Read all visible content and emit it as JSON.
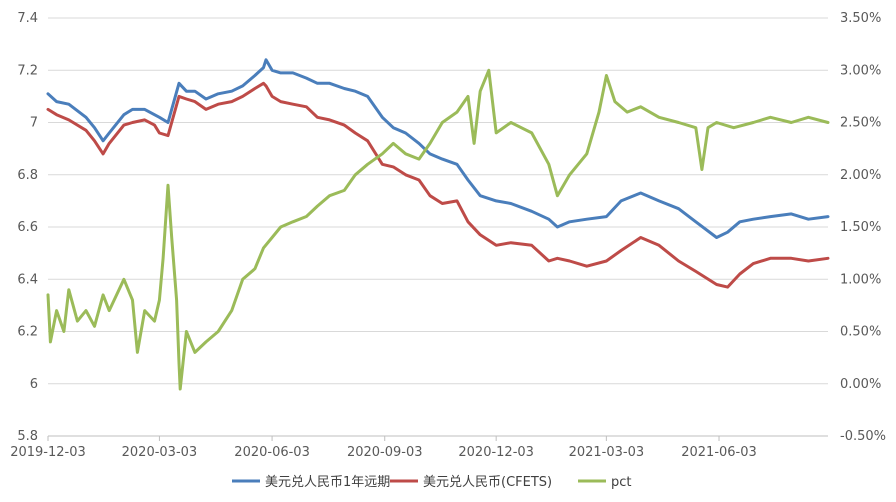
{
  "chart_data": {
    "type": "line",
    "title": "",
    "x_ticks": [
      "2019-12-03",
      "2020-03-03",
      "2020-06-03",
      "2020-09-03",
      "2020-12-03",
      "2021-03-03",
      "2021-06-03"
    ],
    "x_range": [
      "2019-12-03",
      "2021-08-31"
    ],
    "y_left": {
      "min": 5.8,
      "max": 7.4,
      "ticks": [
        5.8,
        6,
        6.2,
        6.4,
        6.6,
        6.8,
        7,
        7.2,
        7.4
      ],
      "tick_labels": [
        "5.8",
        "6",
        "6.2",
        "6.4",
        "6.6",
        "6.8",
        "7",
        "7.2",
        "7.4"
      ]
    },
    "y_right": {
      "min": -0.5,
      "max": 3.5,
      "ticks": [
        -0.5,
        0,
        0.5,
        1,
        1.5,
        2,
        2.5,
        3,
        3.5
      ],
      "tick_labels": [
        "-0.50%",
        "0.00%",
        "0.50%",
        "1.00%",
        "1.50%",
        "2.00%",
        "2.50%",
        "3.00%",
        "3.50%"
      ]
    },
    "grid": "horizontal",
    "legend_position": "bottom",
    "series": [
      {
        "name": "美元兑人民币1年远期",
        "axis": "left",
        "color": "#4a7ebb",
        "points": [
          [
            "2019-12-03",
            7.11
          ],
          [
            "2019-12-10",
            7.08
          ],
          [
            "2019-12-20",
            7.07
          ],
          [
            "2020-01-03",
            7.02
          ],
          [
            "2020-01-10",
            6.98
          ],
          [
            "2020-01-17",
            6.93
          ],
          [
            "2020-01-22",
            6.96
          ],
          [
            "2020-02-03",
            7.03
          ],
          [
            "2020-02-10",
            7.05
          ],
          [
            "2020-02-20",
            7.05
          ],
          [
            "2020-02-28",
            7.03
          ],
          [
            "2020-03-03",
            7.02
          ],
          [
            "2020-03-10",
            7.0
          ],
          [
            "2020-03-19",
            7.15
          ],
          [
            "2020-03-25",
            7.12
          ],
          [
            "2020-04-01",
            7.12
          ],
          [
            "2020-04-10",
            7.09
          ],
          [
            "2020-04-20",
            7.11
          ],
          [
            "2020-05-01",
            7.12
          ],
          [
            "2020-05-10",
            7.14
          ],
          [
            "2020-05-20",
            7.18
          ],
          [
            "2020-05-27",
            7.21
          ],
          [
            "2020-05-29",
            7.24
          ],
          [
            "2020-06-03",
            7.2
          ],
          [
            "2020-06-10",
            7.19
          ],
          [
            "2020-06-20",
            7.19
          ],
          [
            "2020-07-01",
            7.17
          ],
          [
            "2020-07-10",
            7.15
          ],
          [
            "2020-07-20",
            7.15
          ],
          [
            "2020-08-01",
            7.13
          ],
          [
            "2020-08-10",
            7.12
          ],
          [
            "2020-08-20",
            7.1
          ],
          [
            "2020-09-01",
            7.02
          ],
          [
            "2020-09-10",
            6.98
          ],
          [
            "2020-09-20",
            6.96
          ],
          [
            "2020-10-01",
            6.92
          ],
          [
            "2020-10-10",
            6.88
          ],
          [
            "2020-10-20",
            6.86
          ],
          [
            "2020-11-01",
            6.84
          ],
          [
            "2020-11-10",
            6.78
          ],
          [
            "2020-11-20",
            6.72
          ],
          [
            "2020-12-03",
            6.7
          ],
          [
            "2020-12-15",
            6.69
          ],
          [
            "2021-01-01",
            6.66
          ],
          [
            "2021-01-15",
            6.63
          ],
          [
            "2021-01-22",
            6.6
          ],
          [
            "2021-02-01",
            6.62
          ],
          [
            "2021-02-15",
            6.63
          ],
          [
            "2021-03-03",
            6.64
          ],
          [
            "2021-03-15",
            6.7
          ],
          [
            "2021-03-31",
            6.73
          ],
          [
            "2021-04-15",
            6.7
          ],
          [
            "2021-05-01",
            6.67
          ],
          [
            "2021-05-15",
            6.62
          ],
          [
            "2021-06-01",
            6.56
          ],
          [
            "2021-06-10",
            6.58
          ],
          [
            "2021-06-20",
            6.62
          ],
          [
            "2021-07-01",
            6.63
          ],
          [
            "2021-07-15",
            6.64
          ],
          [
            "2021-08-01",
            6.65
          ],
          [
            "2021-08-15",
            6.63
          ],
          [
            "2021-08-31",
            6.64
          ]
        ]
      },
      {
        "name": "美元兑人民币(CFETS)",
        "axis": "left",
        "color": "#be4b48",
        "points": [
          [
            "2019-12-03",
            7.05
          ],
          [
            "2019-12-10",
            7.03
          ],
          [
            "2019-12-20",
            7.01
          ],
          [
            "2020-01-03",
            6.97
          ],
          [
            "2020-01-10",
            6.93
          ],
          [
            "2020-01-17",
            6.88
          ],
          [
            "2020-01-22",
            6.92
          ],
          [
            "2020-02-03",
            6.99
          ],
          [
            "2020-02-10",
            7.0
          ],
          [
            "2020-02-20",
            7.01
          ],
          [
            "2020-02-28",
            6.99
          ],
          [
            "2020-03-03",
            6.96
          ],
          [
            "2020-03-10",
            6.95
          ],
          [
            "2020-03-19",
            7.1
          ],
          [
            "2020-03-25",
            7.09
          ],
          [
            "2020-04-01",
            7.08
          ],
          [
            "2020-04-10",
            7.05
          ],
          [
            "2020-04-20",
            7.07
          ],
          [
            "2020-05-01",
            7.08
          ],
          [
            "2020-05-10",
            7.1
          ],
          [
            "2020-05-20",
            7.13
          ],
          [
            "2020-05-27",
            7.15
          ],
          [
            "2020-05-29",
            7.14
          ],
          [
            "2020-06-03",
            7.1
          ],
          [
            "2020-06-10",
            7.08
          ],
          [
            "2020-06-20",
            7.07
          ],
          [
            "2020-07-01",
            7.06
          ],
          [
            "2020-07-10",
            7.02
          ],
          [
            "2020-07-20",
            7.01
          ],
          [
            "2020-08-01",
            6.99
          ],
          [
            "2020-08-10",
            6.96
          ],
          [
            "2020-08-20",
            6.93
          ],
          [
            "2020-09-01",
            6.84
          ],
          [
            "2020-09-10",
            6.83
          ],
          [
            "2020-09-20",
            6.8
          ],
          [
            "2020-10-01",
            6.78
          ],
          [
            "2020-10-10",
            6.72
          ],
          [
            "2020-10-20",
            6.69
          ],
          [
            "2020-11-01",
            6.7
          ],
          [
            "2020-11-10",
            6.62
          ],
          [
            "2020-11-20",
            6.57
          ],
          [
            "2020-12-03",
            6.53
          ],
          [
            "2020-12-15",
            6.54
          ],
          [
            "2021-01-01",
            6.53
          ],
          [
            "2021-01-15",
            6.47
          ],
          [
            "2021-01-22",
            6.48
          ],
          [
            "2021-02-01",
            6.47
          ],
          [
            "2021-02-15",
            6.45
          ],
          [
            "2021-03-03",
            6.47
          ],
          [
            "2021-03-15",
            6.51
          ],
          [
            "2021-03-31",
            6.56
          ],
          [
            "2021-04-15",
            6.53
          ],
          [
            "2021-05-01",
            6.47
          ],
          [
            "2021-05-15",
            6.43
          ],
          [
            "2021-06-01",
            6.38
          ],
          [
            "2021-06-10",
            6.37
          ],
          [
            "2021-06-20",
            6.42
          ],
          [
            "2021-07-01",
            6.46
          ],
          [
            "2021-07-15",
            6.48
          ],
          [
            "2021-08-01",
            6.48
          ],
          [
            "2021-08-15",
            6.47
          ],
          [
            "2021-08-31",
            6.48
          ]
        ]
      },
      {
        "name": "pct",
        "axis": "right",
        "color": "#9bbb59",
        "points": [
          [
            "2019-12-03",
            0.85
          ],
          [
            "2019-12-05",
            0.4
          ],
          [
            "2019-12-10",
            0.7
          ],
          [
            "2019-12-16",
            0.5
          ],
          [
            "2019-12-20",
            0.9
          ],
          [
            "2019-12-27",
            0.6
          ],
          [
            "2020-01-03",
            0.7
          ],
          [
            "2020-01-10",
            0.55
          ],
          [
            "2020-01-17",
            0.85
          ],
          [
            "2020-01-22",
            0.7
          ],
          [
            "2020-02-03",
            1.0
          ],
          [
            "2020-02-10",
            0.8
          ],
          [
            "2020-02-14",
            0.3
          ],
          [
            "2020-02-20",
            0.7
          ],
          [
            "2020-02-28",
            0.6
          ],
          [
            "2020-03-03",
            0.8
          ],
          [
            "2020-03-06",
            1.2
          ],
          [
            "2020-03-10",
            1.9
          ],
          [
            "2020-03-13",
            1.4
          ],
          [
            "2020-03-17",
            0.8
          ],
          [
            "2020-03-19",
            0.2
          ],
          [
            "2020-03-20",
            -0.05
          ],
          [
            "2020-03-25",
            0.5
          ],
          [
            "2020-04-01",
            0.3
          ],
          [
            "2020-04-10",
            0.4
          ],
          [
            "2020-04-20",
            0.5
          ],
          [
            "2020-05-01",
            0.7
          ],
          [
            "2020-05-10",
            1.0
          ],
          [
            "2020-05-20",
            1.1
          ],
          [
            "2020-05-27",
            1.3
          ],
          [
            "2020-06-03",
            1.4
          ],
          [
            "2020-06-10",
            1.5
          ],
          [
            "2020-06-20",
            1.55
          ],
          [
            "2020-07-01",
            1.6
          ],
          [
            "2020-07-10",
            1.7
          ],
          [
            "2020-07-20",
            1.8
          ],
          [
            "2020-08-01",
            1.85
          ],
          [
            "2020-08-10",
            2.0
          ],
          [
            "2020-08-20",
            2.1
          ],
          [
            "2020-09-01",
            2.2
          ],
          [
            "2020-09-10",
            2.3
          ],
          [
            "2020-09-20",
            2.2
          ],
          [
            "2020-10-01",
            2.15
          ],
          [
            "2020-10-10",
            2.3
          ],
          [
            "2020-10-20",
            2.5
          ],
          [
            "2020-11-01",
            2.6
          ],
          [
            "2020-11-10",
            2.75
          ],
          [
            "2020-11-15",
            2.3
          ],
          [
            "2020-11-20",
            2.8
          ],
          [
            "2020-11-27",
            3.0
          ],
          [
            "2020-12-03",
            2.4
          ],
          [
            "2020-12-15",
            2.5
          ],
          [
            "2021-01-01",
            2.4
          ],
          [
            "2021-01-15",
            2.1
          ],
          [
            "2021-01-22",
            1.8
          ],
          [
            "2021-02-01",
            2.0
          ],
          [
            "2021-02-15",
            2.2
          ],
          [
            "2021-02-25",
            2.6
          ],
          [
            "2021-03-03",
            2.95
          ],
          [
            "2021-03-10",
            2.7
          ],
          [
            "2021-03-20",
            2.6
          ],
          [
            "2021-03-31",
            2.65
          ],
          [
            "2021-04-15",
            2.55
          ],
          [
            "2021-05-01",
            2.5
          ],
          [
            "2021-05-15",
            2.45
          ],
          [
            "2021-05-20",
            2.05
          ],
          [
            "2021-05-25",
            2.45
          ],
          [
            "2021-06-01",
            2.5
          ],
          [
            "2021-06-15",
            2.45
          ],
          [
            "2021-07-01",
            2.5
          ],
          [
            "2021-07-15",
            2.55
          ],
          [
            "2021-08-01",
            2.5
          ],
          [
            "2021-08-15",
            2.55
          ],
          [
            "2021-08-31",
            2.5
          ]
        ]
      }
    ]
  }
}
